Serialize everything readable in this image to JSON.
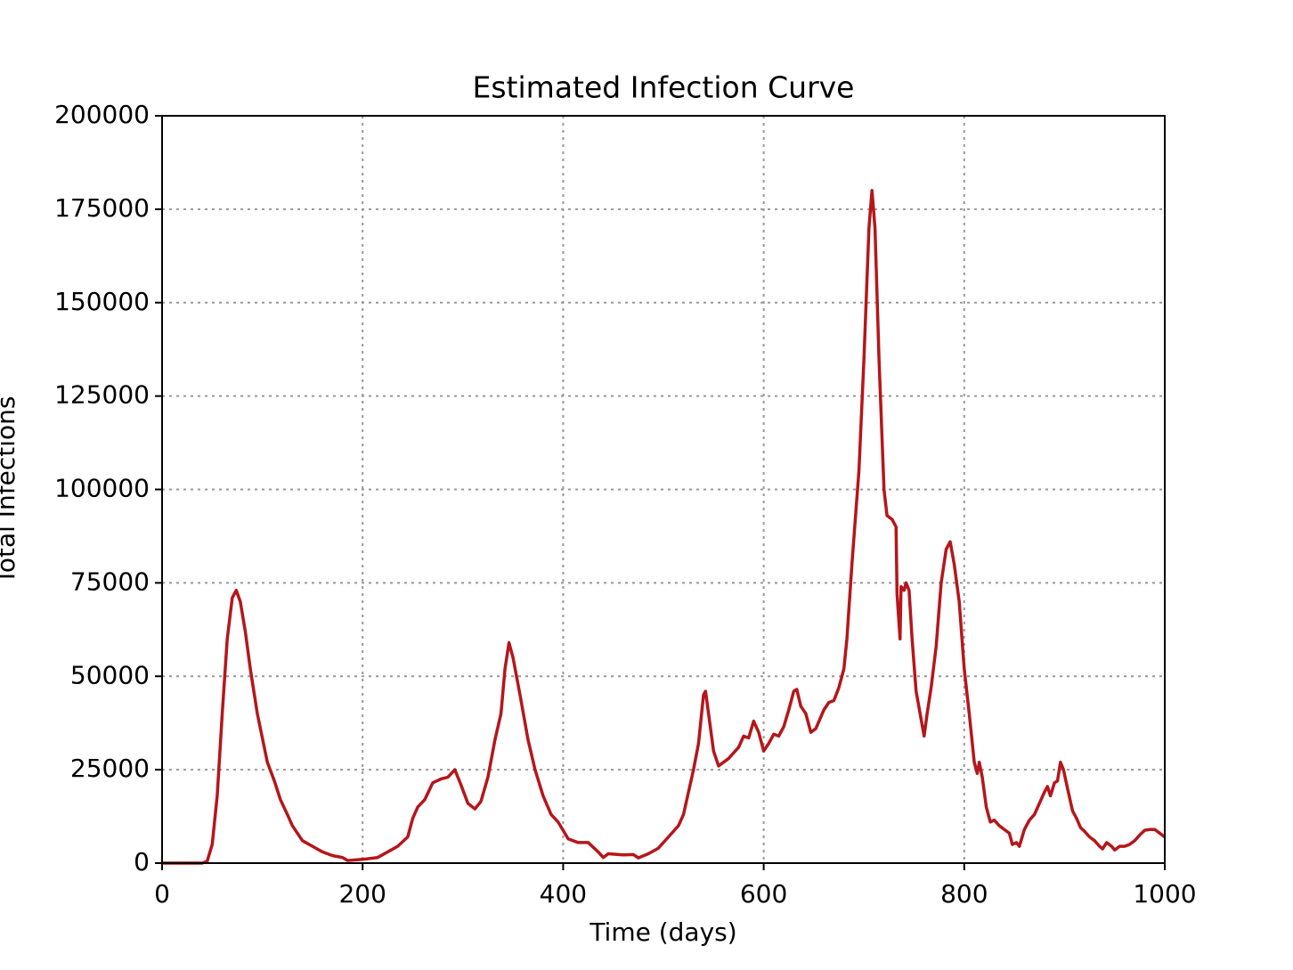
{
  "chart_data": {
    "type": "line",
    "title": "Estimated Infection Curve",
    "x_label": "Time (days)",
    "y_label": "Total Infections",
    "xlim": [
      0,
      1000
    ],
    "xticks": [
      0,
      200,
      400,
      600,
      800,
      1000
    ],
    "ylim": [
      0,
      200000
    ],
    "yticks": [
      0,
      25000,
      50000,
      75000,
      100000,
      125000,
      150000,
      175000,
      200000
    ],
    "grid": true,
    "x": [
      0,
      40,
      45,
      50,
      55,
      60,
      65,
      70,
      74,
      78,
      83,
      88,
      95,
      105,
      112,
      118,
      125,
      130,
      140,
      150,
      160,
      170,
      180,
      185,
      200,
      215,
      225,
      235,
      245,
      250,
      255,
      262,
      270,
      278,
      285,
      292,
      298,
      305,
      312,
      318,
      325,
      332,
      338,
      342,
      346,
      350,
      357,
      365,
      372,
      380,
      388,
      395,
      405,
      415,
      425,
      435,
      440,
      445,
      460,
      470,
      475,
      485,
      495,
      505,
      515,
      520,
      525,
      530,
      535,
      540,
      542,
      545,
      550,
      555,
      565,
      575,
      580,
      585,
      590,
      595,
      600,
      605,
      610,
      615,
      620,
      625,
      630,
      633,
      637,
      642,
      647,
      652,
      660,
      665,
      670,
      675,
      680,
      683,
      688,
      695,
      700,
      705,
      708,
      711,
      715,
      720,
      723,
      728,
      732,
      733,
      736,
      737,
      740,
      742,
      745,
      748,
      752,
      756,
      760,
      763,
      767,
      772,
      777,
      782,
      786,
      790,
      795,
      800,
      805,
      810,
      813,
      815,
      818,
      822,
      826,
      830,
      835,
      840,
      845,
      848,
      852,
      855,
      860,
      865,
      870,
      875,
      880,
      883,
      886,
      890,
      893,
      896,
      899,
      903,
      908,
      912,
      916,
      920,
      925,
      930,
      935,
      938,
      942,
      947,
      950,
      955,
      960,
      965,
      970,
      975,
      980,
      985,
      990,
      995,
      1000
    ],
    "series": [
      {
        "name": "Total Infections",
        "color": "#b5161b",
        "values": [
          0,
          0,
          500,
          5000,
          18000,
          40000,
          60000,
          71000,
          73000,
          70000,
          62000,
          52000,
          40000,
          27000,
          22000,
          17000,
          13000,
          10000,
          6000,
          4500,
          3000,
          2000,
          1500,
          700,
          1000,
          1500,
          3000,
          4500,
          7000,
          12000,
          15000,
          17000,
          21500,
          22500,
          23000,
          25000,
          21000,
          16000,
          14500,
          16500,
          23000,
          33000,
          40000,
          52000,
          59000,
          55000,
          45000,
          33000,
          25000,
          18000,
          13000,
          11000,
          6500,
          5500,
          5500,
          3000,
          1500,
          2500,
          2200,
          2300,
          1400,
          2500,
          4000,
          7000,
          10000,
          13000,
          19000,
          25000,
          32000,
          45000,
          46000,
          40000,
          30000,
          26000,
          28000,
          31000,
          34000,
          33500,
          38000,
          35000,
          30000,
          32000,
          34500,
          34000,
          36500,
          41000,
          46000,
          46500,
          42000,
          40000,
          35000,
          36000,
          41000,
          43000,
          43500,
          47000,
          52000,
          60000,
          80000,
          105000,
          135000,
          170000,
          180000,
          170000,
          135000,
          100000,
          93000,
          92000,
          90000,
          72000,
          60000,
          74000,
          73000,
          75000,
          73000,
          60000,
          46000,
          40000,
          34000,
          40000,
          47000,
          58000,
          75000,
          84000,
          86000,
          80000,
          70000,
          52000,
          40000,
          27000,
          24000,
          27000,
          23000,
          15000,
          11000,
          11500,
          10000,
          9000,
          8000,
          5000,
          5500,
          4500,
          9000,
          11500,
          13000,
          16000,
          19000,
          20500,
          18000,
          21500,
          22000,
          27000,
          25000,
          20000,
          14000,
          12000,
          9500,
          8500,
          7000,
          6000,
          4500,
          3800,
          5500,
          4500,
          3500,
          4500,
          4500,
          5000,
          6000,
          7500,
          8800,
          9000,
          9000,
          8000,
          7000
        ]
      }
    ]
  }
}
